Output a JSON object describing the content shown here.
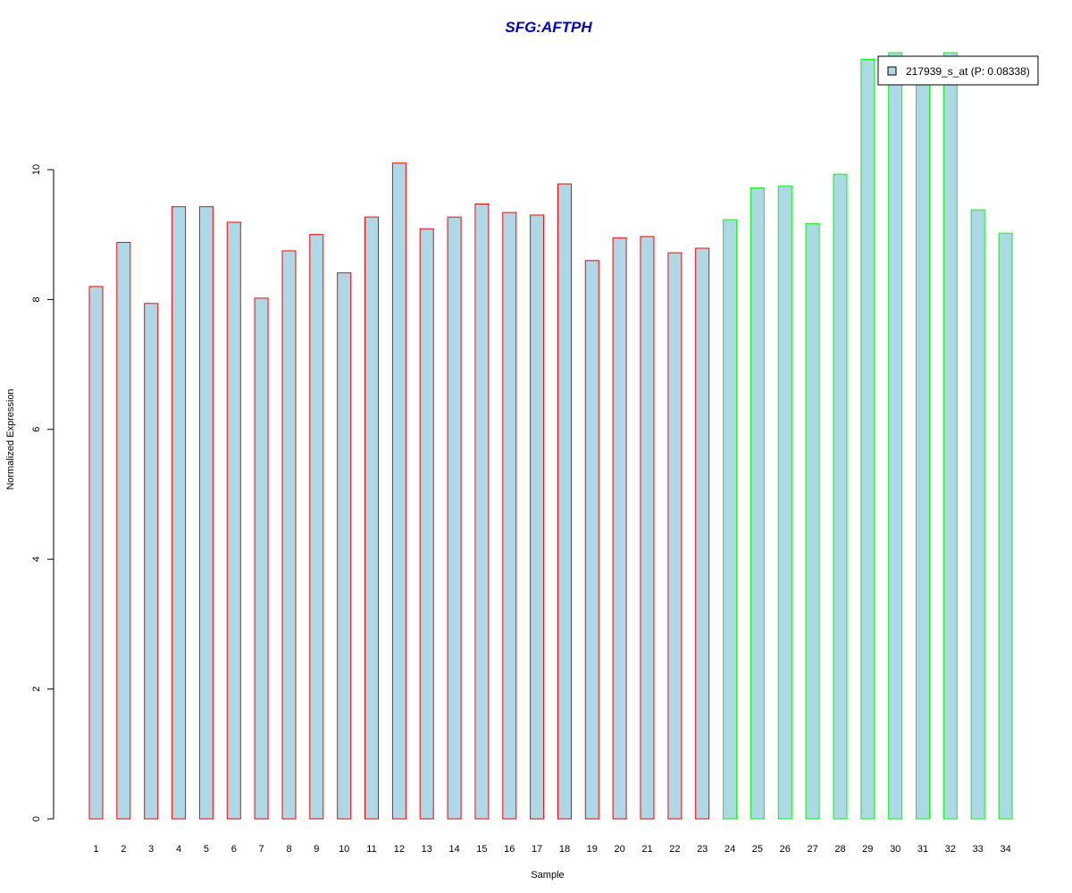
{
  "chart_data": {
    "type": "bar",
    "title": "SFG:AFTPH",
    "title_color": "#0000CC",
    "xlabel": "Sample",
    "ylabel": "Normalized Expression",
    "categories": [
      "1",
      "2",
      "3",
      "4",
      "5",
      "6",
      "7",
      "8",
      "9",
      "10",
      "11",
      "12",
      "13",
      "14",
      "15",
      "16",
      "17",
      "18",
      "19",
      "20",
      "21",
      "22",
      "23",
      "24",
      "25",
      "26",
      "27",
      "28",
      "29",
      "30",
      "31",
      "32",
      "33",
      "34"
    ],
    "series": [
      {
        "name": "217939_s_at (P: 0.08338)",
        "values": [
          8.2,
          8.88,
          7.94,
          9.43,
          9.43,
          9.19,
          8.02,
          8.75,
          9.0,
          8.41,
          9.27,
          10.1,
          9.09,
          9.27,
          9.47,
          9.34,
          9.3,
          9.78,
          8.6,
          8.95,
          8.97,
          8.72,
          8.79,
          9.23,
          9.72,
          9.75,
          9.17,
          9.93,
          11.7,
          11.8,
          11.6,
          11.8,
          9.38,
          9.02
        ]
      }
    ],
    "fill_color": "#ADD8E6",
    "group_border_colors": [
      "#FF0000",
      "#FF0000",
      "#FF0000",
      "#FF0000",
      "#FF0000",
      "#FF0000",
      "#FF0000",
      "#FF0000",
      "#FF0000",
      "#FF0000",
      "#FF0000",
      "#FF0000",
      "#FF0000",
      "#FF0000",
      "#FF0000",
      "#FF0000",
      "#FF0000",
      "#FF0000",
      "#FF0000",
      "#FF0000",
      "#FF0000",
      "#FF0000",
      "#FF0000",
      "#00FF00",
      "#00FF00",
      "#00FF00",
      "#00FF00",
      "#00FF00",
      "#00FF00",
      "#00FF00",
      "#00FF00",
      "#00FF00",
      "#00FF00",
      "#00FF00"
    ],
    "yticks": [
      "0",
      "2",
      "4",
      "6",
      "8",
      "10"
    ],
    "ylim": [
      0,
      11.8
    ],
    "legend_position": "top-right",
    "grid": false
  }
}
